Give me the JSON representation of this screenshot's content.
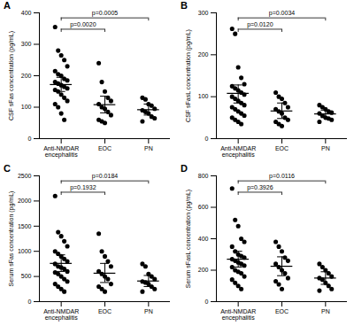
{
  "chart_data": [
    {
      "type": "scatter",
      "label": "A",
      "y_label": "CSF sFas concentration (pg/mL)",
      "categories": [
        "Anti-NMDAR encephalitis",
        "EOC",
        "PN"
      ],
      "points": [
        [
          355,
          280,
          265,
          250,
          230,
          215,
          205,
          200,
          190,
          185,
          180,
          175,
          170,
          165,
          160,
          155,
          150,
          140,
          130,
          120,
          110,
          100,
          80,
          60
        ],
        [
          240,
          180,
          150,
          130,
          120,
          110,
          100,
          95,
          85,
          75,
          60,
          55,
          50
        ],
        [
          130,
          125,
          110,
          105,
          95,
          90,
          85,
          80,
          70,
          65,
          55
        ]
      ],
      "means": [
        172,
        108,
        92
      ],
      "errors": [
        [
          150,
          195
        ],
        [
          82,
          135
        ],
        [
          75,
          110
        ]
      ],
      "ylim": [
        0,
        400
      ],
      "yticks": [
        0,
        100,
        200,
        300,
        400
      ],
      "color": "#000000",
      "annotations": [
        {
          "text": "p=0.0020",
          "from": "Anti-NMDAR encephalitis",
          "to": "EOC"
        },
        {
          "text": "p=0.0005",
          "from": "Anti-NMDAR encephalitis",
          "to": "PN"
        }
      ]
    },
    {
      "type": "scatter",
      "label": "B",
      "y_label": "CSF sFasL concentration (pg/mL)",
      "categories": [
        "Anti-NMDAR encephalitis",
        "EOC",
        "PN"
      ],
      "points": [
        [
          262,
          250,
          170,
          145,
          130,
          125,
          120,
          115,
          110,
          105,
          100,
          95,
          90,
          85,
          80,
          75,
          70,
          65,
          60,
          55,
          50,
          45,
          40,
          35
        ],
        [
          110,
          100,
          95,
          85,
          75,
          70,
          65,
          60,
          50,
          45,
          40,
          35,
          30
        ],
        [
          80,
          75,
          70,
          65,
          62,
          60,
          55,
          50,
          48,
          45,
          40
        ]
      ],
      "means": [
        108,
        66,
        59
      ],
      "errors": [
        [
          85,
          128
        ],
        [
          48,
          85
        ],
        [
          50,
          68
        ]
      ],
      "ylim": [
        0,
        300
      ],
      "yticks": [
        0,
        100,
        200,
        300
      ],
      "color": "#000000",
      "annotations": [
        {
          "text": "p=0.0120",
          "from": "Anti-NMDAR encephalitis",
          "to": "EOC"
        },
        {
          "text": "p=0.0034",
          "from": "Anti-NMDAR encephalitis",
          "to": "PN"
        }
      ]
    },
    {
      "type": "scatter",
      "label": "C",
      "y_label": "Serum sFas concentration (pg/mL)",
      "categories": [
        "Anti-NMDAR encephalitis",
        "EOC",
        "PN"
      ],
      "points": [
        [
          2100,
          1380,
          1300,
          1200,
          1100,
          1000,
          950,
          900,
          850,
          800,
          750,
          700,
          680,
          650,
          600,
          580,
          550,
          500,
          450,
          400,
          350,
          300,
          250,
          200
        ],
        [
          1350,
          1000,
          900,
          800,
          700,
          600,
          550,
          500,
          450,
          350,
          300,
          250,
          200
        ],
        [
          750,
          700,
          550,
          500,
          450,
          400,
          380,
          350,
          300,
          250,
          200
        ]
      ],
      "means": [
        760,
        565,
        410
      ],
      "errors": [
        [
          600,
          930
        ],
        [
          380,
          760
        ],
        [
          300,
          520
        ]
      ],
      "ylim": [
        0,
        2500
      ],
      "yticks": [
        0,
        500,
        1000,
        1500,
        2000,
        2500
      ],
      "color": "#000000",
      "annotations": [
        {
          "text": "p=0.1932",
          "from": "Anti-NMDAR encephalitis",
          "to": "EOC"
        },
        {
          "text": "p=0.0184",
          "from": "Anti-NMDAR encephalitis",
          "to": "PN"
        }
      ]
    },
    {
      "type": "scatter",
      "label": "D",
      "y_label": "Serum sFasL concentration (pg/mL)",
      "categories": [
        "Anti-NMDAR encephalitis",
        "EOC",
        "PN"
      ],
      "points": [
        [
          720,
          520,
          480,
          400,
          380,
          350,
          320,
          300,
          290,
          280,
          270,
          260,
          250,
          240,
          230,
          220,
          200,
          190,
          180,
          160,
          140,
          120,
          100,
          80
        ],
        [
          380,
          350,
          320,
          280,
          260,
          240,
          220,
          200,
          180,
          150,
          130,
          110,
          80
        ],
        [
          240,
          220,
          200,
          180,
          160,
          150,
          140,
          120,
          100,
          80,
          70
        ]
      ],
      "means": [
        270,
        225,
        150
      ],
      "errors": [
        [
          220,
          320
        ],
        [
          165,
          285
        ],
        [
          110,
          190
        ]
      ],
      "ylim": [
        0,
        800
      ],
      "yticks": [
        0,
        200,
        400,
        600,
        800
      ],
      "color": "#000000",
      "annotations": [
        {
          "text": "p=0.3926",
          "from": "Anti-NMDAR encephalitis",
          "to": "EOC"
        },
        {
          "text": "p=0.0116",
          "from": "Anti-NMDAR encephalitis",
          "to": "PN"
        }
      ]
    }
  ]
}
